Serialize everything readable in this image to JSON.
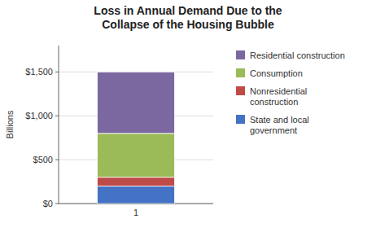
{
  "chart_data": {
    "type": "bar",
    "stacked": true,
    "title": "Loss in Annual Demand Due to the\nCollapse of the Housing Bubble",
    "ylabel": "Billions",
    "categories": [
      "1"
    ],
    "series": [
      {
        "name": "State and local\ngovernment",
        "color": "#4472C4",
        "values": [
          200
        ]
      },
      {
        "name": "Nonresidential\nconstruction",
        "color": "#BE4B48",
        "values": [
          100
        ]
      },
      {
        "name": "Consumption",
        "color": "#9BBB59",
        "values": [
          500
        ]
      },
      {
        "name": "Residential construction",
        "color": "#7B68A0",
        "values": [
          700
        ]
      }
    ],
    "ylim": [
      0,
      1800
    ],
    "yticks": [
      {
        "value": 0,
        "label": "$0"
      },
      {
        "value": 500,
        "label": "$500"
      },
      {
        "value": 1000,
        "label": "$1,000"
      },
      {
        "value": 1500,
        "label": "$1,500"
      }
    ],
    "grid": true,
    "legend": "right"
  }
}
